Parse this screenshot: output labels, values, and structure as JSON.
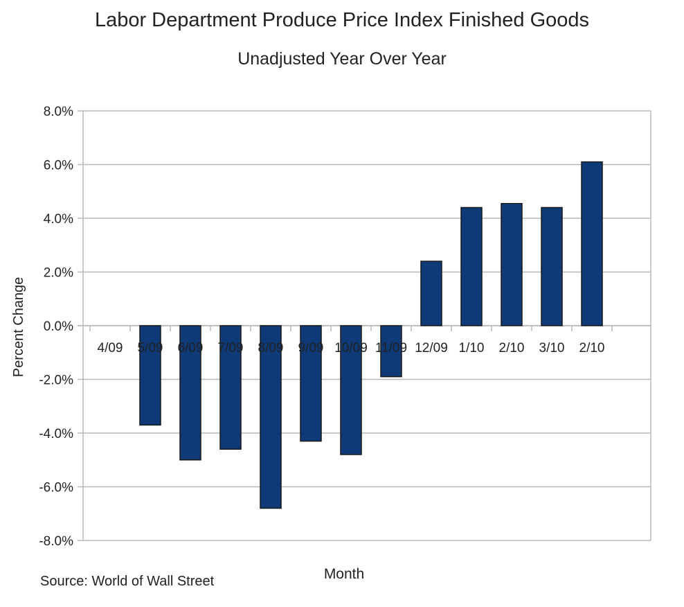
{
  "chart_data": {
    "type": "bar",
    "title": "Labor Department Produce Price Index Finished Goods",
    "subtitle": "Unadjusted Year Over Year",
    "xlabel": "Month",
    "ylabel": "Percent Change",
    "source": "Source: World of Wall Street",
    "categories": [
      "4/09",
      "5/09",
      "6/09",
      "7/09",
      "8/09",
      "9/09",
      "10/09",
      "11/09",
      "12/09",
      "1/10",
      "2/10",
      "3/10",
      "2/10"
    ],
    "values": [
      0.0,
      -3.7,
      -5.0,
      -4.6,
      -6.8,
      -4.3,
      -4.8,
      -1.9,
      2.4,
      4.4,
      4.55,
      4.4,
      6.1
    ],
    "ylim": [
      -8.0,
      8.0
    ],
    "yticks": [
      8.0,
      6.0,
      4.0,
      2.0,
      0.0,
      -2.0,
      -4.0,
      -6.0,
      -8.0
    ],
    "ytick_labels": [
      "8.0%",
      "6.0%",
      "4.0%",
      "2.0%",
      "0.0%",
      "-2.0%",
      "-4.0%",
      "-6.0%",
      "-8.0%"
    ],
    "grid": true,
    "legend": "none",
    "bar_color": "#0e3a78",
    "bar_outline_color": "#1a1a1a"
  }
}
